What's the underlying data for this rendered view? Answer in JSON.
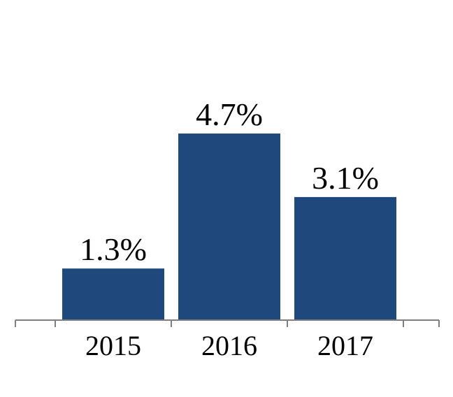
{
  "chart_data": {
    "type": "bar",
    "categories": [
      "2015",
      "2016",
      "2017"
    ],
    "values": [
      1.3,
      4.7,
      3.1
    ],
    "data_labels": [
      "1.3%",
      "4.7%",
      "3.1%"
    ],
    "ylim": [
      0,
      5.4
    ],
    "grid": false,
    "bar_color": "#1F497D",
    "axis_color": "#7F7F7F"
  }
}
